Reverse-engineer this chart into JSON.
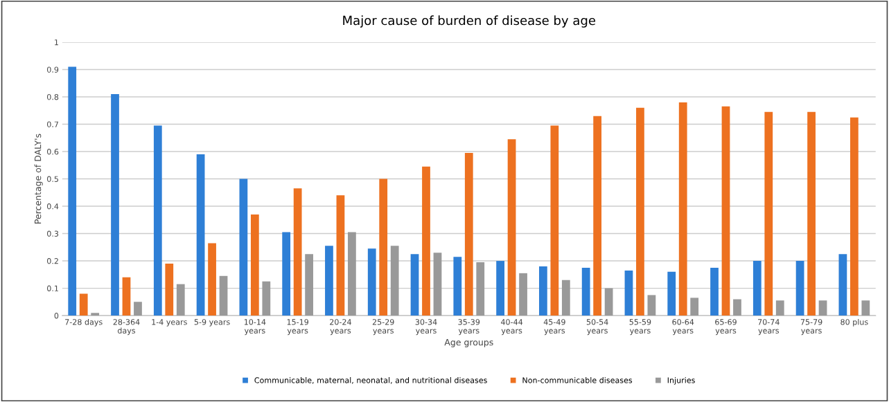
{
  "chart_data": {
    "type": "bar",
    "title": "Major cause of burden of disease by age",
    "xlabel": "Age groups",
    "ylabel": "Percentage of DALY's",
    "categories": [
      "7-28 days",
      "28-364\ndays",
      "1-4 years",
      "5-9 years",
      "10-14\nyears",
      "15-19\nyears",
      "20-24\nyears",
      "25-29\nyears",
      "30-34\nyears",
      "35-39\nyears",
      "40-44\nyears",
      "45-49\nyears",
      "50-54\nyears",
      "55-59\nyears",
      "60-64\nyears",
      "65-69\nyears",
      "70-74\nyears",
      "75-79\nyears",
      "80 plus"
    ],
    "series": [
      {
        "name": "Communicable, maternal, neonatal, and nutritional diseases",
        "color": "#2e7fd6",
        "values": [
          0.91,
          0.81,
          0.695,
          0.59,
          0.5,
          0.305,
          0.255,
          0.245,
          0.225,
          0.215,
          0.2,
          0.18,
          0.175,
          0.165,
          0.16,
          0.175,
          0.2,
          0.2,
          0.225
        ]
      },
      {
        "name": "Non-communicable diseases",
        "color": "#ed7120",
        "values": [
          0.08,
          0.14,
          0.19,
          0.265,
          0.37,
          0.465,
          0.44,
          0.5,
          0.545,
          0.595,
          0.645,
          0.695,
          0.73,
          0.76,
          0.78,
          0.765,
          0.745,
          0.745,
          0.725
        ]
      },
      {
        "name": "Injuries",
        "color": "#999999",
        "values": [
          0.01,
          0.05,
          0.115,
          0.145,
          0.125,
          0.225,
          0.305,
          0.255,
          0.23,
          0.195,
          0.155,
          0.13,
          0.1,
          0.075,
          0.065,
          0.06,
          0.055,
          0.055,
          0.055
        ]
      }
    ],
    "ylim": [
      0,
      1
    ],
    "yticks": [
      0,
      0.1,
      0.2,
      0.3,
      0.4,
      0.5,
      0.6,
      0.7,
      0.8,
      0.9,
      1
    ],
    "grid": "y",
    "legend": "bottom"
  }
}
